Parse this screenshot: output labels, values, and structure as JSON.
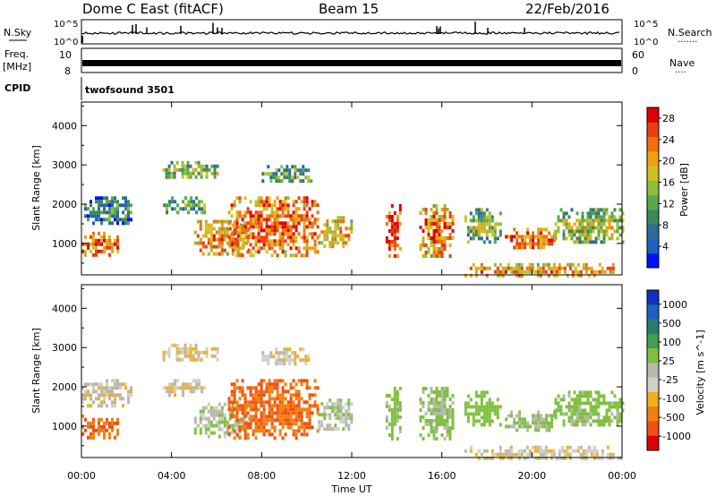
{
  "header": {
    "title": "Dome C East (fitACF)",
    "beam": "Beam 15",
    "date": "22/Feb/2016"
  },
  "strips": {
    "nsky_label": "N.Sky",
    "nsky_ticks": [
      "10^5",
      "10^0"
    ],
    "nsearch_label": "N.Search",
    "nsearch_dots": "·······",
    "freq_label_line1": "Freq.",
    "freq_label_line2": "[MHz]",
    "freq_ticks_left": [
      "10",
      "8"
    ],
    "freq_ticks_right": [
      "60",
      "0"
    ],
    "nave_label": "Nave",
    "nave_dots": "····",
    "cpid_label": "CPID",
    "cpid_value": "twofsound 3501"
  },
  "colors": {
    "power_scale": [
      "#0010ff",
      "#2060c0",
      "#2e6a9a",
      "#3c8a5a",
      "#58a850",
      "#8fbf3a",
      "#d0c020",
      "#f0a010",
      "#f07010",
      "#e84010",
      "#e00000"
    ],
    "velocity_scale": [
      "#1030c0",
      "#2060c0",
      "#2e7a70",
      "#40a050",
      "#80c040",
      "#b8b8b0",
      "#d0d0c8",
      "#f0b020",
      "#f08010",
      "#f05010",
      "#e00000"
    ]
  },
  "chart_data": [
    {
      "type": "heatmap",
      "panel": "power",
      "ylabel": "Slant Range [km]",
      "xlabel": "",
      "x_ticks": [
        "00:00",
        "04:00",
        "08:00",
        "12:00",
        "16:00",
        "20:00",
        "00:00"
      ],
      "y_ticks": [
        1000,
        2000,
        3000,
        4000
      ],
      "ylim": [
        200,
        4600
      ],
      "xlim_hours": [
        0,
        24
      ],
      "colorbar": {
        "label": "Power [dB]",
        "ticks": [
          4,
          8,
          12,
          16,
          20,
          24,
          28
        ],
        "range": [
          0,
          30
        ]
      },
      "echo_regions": [
        {
          "t0": 0.0,
          "t1": 1.6,
          "r0": 700,
          "r1": 1300,
          "level": 0.8
        },
        {
          "t0": 0.0,
          "t1": 2.2,
          "r0": 1500,
          "r1": 2200,
          "level": 0.35
        },
        {
          "t0": 3.6,
          "t1": 6.0,
          "r0": 2700,
          "r1": 3100,
          "level": 0.5
        },
        {
          "t0": 3.5,
          "t1": 5.5,
          "r0": 1800,
          "r1": 2200,
          "level": 0.4
        },
        {
          "t0": 5.0,
          "t1": 7.5,
          "r0": 700,
          "r1": 1600,
          "level": 0.75
        },
        {
          "t0": 6.5,
          "t1": 10.5,
          "r0": 700,
          "r1": 2200,
          "level": 0.85
        },
        {
          "t0": 8.0,
          "t1": 10.2,
          "r0": 2600,
          "r1": 3000,
          "level": 0.45
        },
        {
          "t0": 10.5,
          "t1": 12.0,
          "r0": 900,
          "r1": 1700,
          "level": 0.7
        },
        {
          "t0": 13.5,
          "t1": 14.2,
          "r0": 700,
          "r1": 2000,
          "level": 0.95
        },
        {
          "t0": 15.0,
          "t1": 16.5,
          "r0": 700,
          "r1": 2000,
          "level": 0.8
        },
        {
          "t0": 17.0,
          "t1": 18.6,
          "r0": 1000,
          "r1": 1900,
          "level": 0.5
        },
        {
          "t0": 18.8,
          "t1": 21.0,
          "r0": 900,
          "r1": 1400,
          "level": 0.85
        },
        {
          "t0": 21.0,
          "t1": 24.0,
          "r0": 1000,
          "r1": 1900,
          "level": 0.55
        },
        {
          "t0": 17.0,
          "t1": 24.0,
          "r0": 200,
          "r1": 500,
          "level": 0.75
        }
      ]
    },
    {
      "type": "heatmap",
      "panel": "velocity",
      "ylabel": "Slant Range [km]",
      "xlabel": "Time UT",
      "x_ticks": [
        "00:00",
        "04:00",
        "08:00",
        "12:00",
        "16:00",
        "20:00",
        "00:00"
      ],
      "y_ticks": [
        1000,
        2000,
        3000,
        4000
      ],
      "ylim": [
        200,
        4600
      ],
      "xlim_hours": [
        0,
        24
      ],
      "colorbar": {
        "label": "Velocity [m s^-1]",
        "ticks": [
          "1000",
          "500",
          "100",
          "25",
          "-25",
          "-100",
          "-500",
          "-1000"
        ]
      },
      "echo_regions": [
        {
          "t0": 0.0,
          "t1": 1.6,
          "r0": 700,
          "r1": 1300,
          "level": -300
        },
        {
          "t0": 0.0,
          "t1": 2.2,
          "r0": 1500,
          "r1": 2200,
          "level": 10
        },
        {
          "t0": 3.6,
          "t1": 6.0,
          "r0": 2700,
          "r1": 3100,
          "level": 5
        },
        {
          "t0": 3.5,
          "t1": 5.5,
          "r0": 1800,
          "r1": 2200,
          "level": 0
        },
        {
          "t0": 5.0,
          "t1": 7.5,
          "r0": 700,
          "r1": 1600,
          "level": 80
        },
        {
          "t0": 6.5,
          "t1": 10.5,
          "r0": 700,
          "r1": 2200,
          "level": -300
        },
        {
          "t0": 8.0,
          "t1": 10.2,
          "r0": 2600,
          "r1": 3000,
          "level": 5
        },
        {
          "t0": 10.5,
          "t1": 12.0,
          "r0": 900,
          "r1": 1700,
          "level": 60
        },
        {
          "t0": 13.5,
          "t1": 14.2,
          "r0": 700,
          "r1": 2000,
          "level": 150
        },
        {
          "t0": 15.0,
          "t1": 16.5,
          "r0": 700,
          "r1": 2000,
          "level": 120
        },
        {
          "t0": 17.0,
          "t1": 18.6,
          "r0": 1000,
          "r1": 1900,
          "level": 200
        },
        {
          "t0": 18.8,
          "t1": 21.0,
          "r0": 900,
          "r1": 1400,
          "level": 120
        },
        {
          "t0": 21.0,
          "t1": 24.0,
          "r0": 1000,
          "r1": 1900,
          "level": 150
        },
        {
          "t0": 17.0,
          "t1": 24.0,
          "r0": 200,
          "r1": 500,
          "level": 5
        }
      ]
    }
  ]
}
